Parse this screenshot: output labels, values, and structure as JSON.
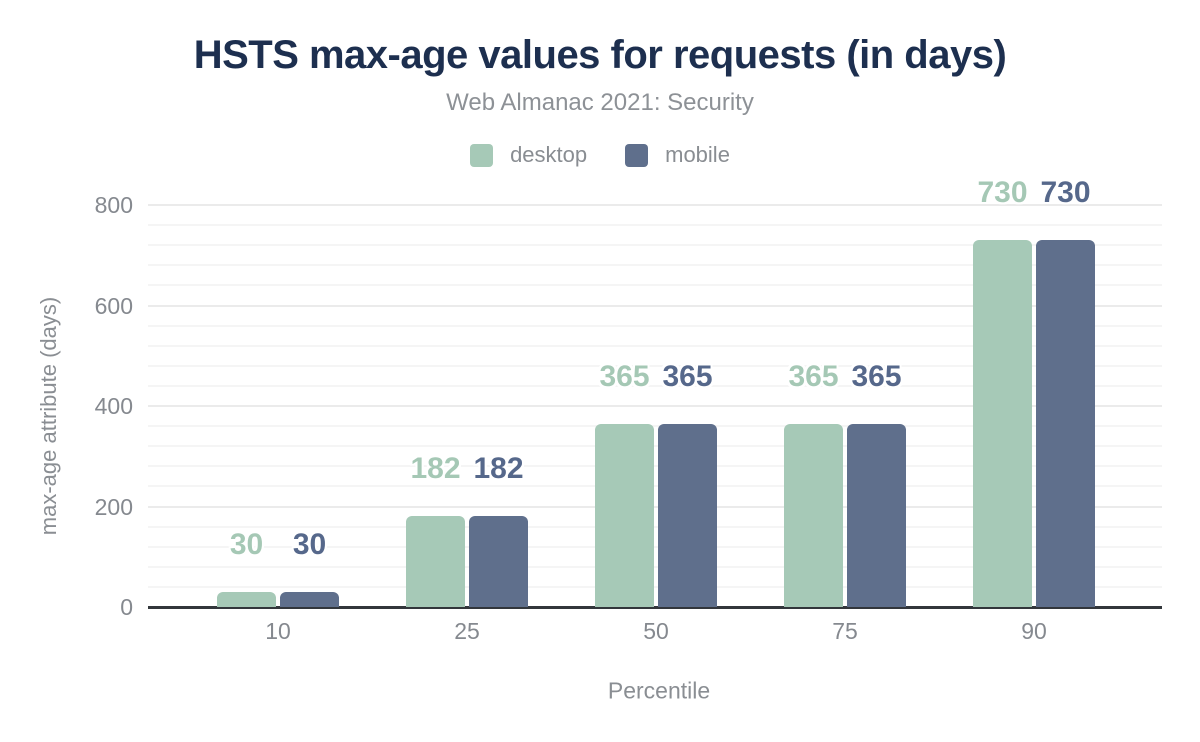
{
  "header": {
    "title": "HSTS max-age values for requests (in days)",
    "subtitle": "Web Almanac 2021: Security"
  },
  "axes": {
    "y_title": "max-age attribute (days)",
    "x_title": "Percentile",
    "y_tick_labels": [
      "0",
      "200",
      "400",
      "600",
      "800"
    ],
    "x_tick_labels": [
      "10",
      "25",
      "50",
      "75",
      "90"
    ]
  },
  "colors": {
    "title": "#1d2f4f",
    "muted_text": "#898d92",
    "tick_text": "#85898f",
    "axis_line": "#32363b",
    "grid_minor": "#f5f5f5",
    "grid_major": "#ebebeb",
    "desktop": "#a6c9b7",
    "mobile": "#5f6f8c",
    "desktop_label": "#a5c8b5",
    "mobile_label": "#56688b"
  },
  "chart_data": {
    "type": "bar",
    "title": "HSTS max-age values for requests (in days)",
    "subtitle": "Web Almanac 2021: Security",
    "categories": [
      "10",
      "25",
      "50",
      "75",
      "90"
    ],
    "series": [
      {
        "name": "desktop",
        "color": "#a6c9b7",
        "label_color": "#a5c8b5",
        "values": [
          30,
          182,
          365,
          365,
          730
        ]
      },
      {
        "name": "mobile",
        "color": "#5f6f8c",
        "label_color": "#56688b",
        "values": [
          30,
          182,
          365,
          365,
          730
        ]
      }
    ],
    "data_labels": true,
    "xlabel": "Percentile",
    "ylabel": "max-age attribute (days)",
    "ylim": [
      0,
      800
    ],
    "y_major_step": 200,
    "y_minor_step": 40,
    "grid": true,
    "legend_position": "top-center"
  }
}
